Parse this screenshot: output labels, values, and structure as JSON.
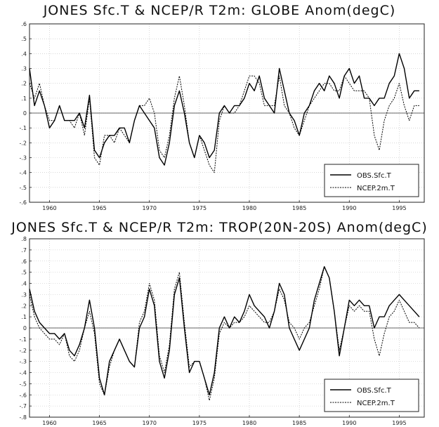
{
  "chart_data": [
    {
      "type": "line",
      "title": "JONES Sfc.T & NCEP/R T2m: GLOBE Anom(degC)",
      "xlabel": "",
      "ylabel": "",
      "xlim": [
        1958,
        1997.5
      ],
      "ylim": [
        -0.6,
        0.6
      ],
      "yticks": [
        -0.6,
        -0.5,
        -0.4,
        -0.3,
        -0.2,
        -0.1,
        0,
        0.1,
        0.2,
        0.3,
        0.4,
        0.5,
        0.6
      ],
      "xticks": [
        1960,
        1965,
        1970,
        1975,
        1980,
        1985,
        1990,
        1995
      ],
      "grid": true,
      "legend_position": "bottom-right",
      "series": [
        {
          "name": "OBS.Sfc.T",
          "style": "solid",
          "x": [
            1958.0,
            1958.5,
            1959.0,
            1959.5,
            1960.0,
            1960.5,
            1961.0,
            1961.5,
            1962.0,
            1962.5,
            1963.0,
            1963.5,
            1964.0,
            1964.5,
            1965.0,
            1965.5,
            1966.0,
            1966.5,
            1967.0,
            1967.5,
            1968.0,
            1968.5,
            1969.0,
            1969.5,
            1970.0,
            1970.5,
            1971.0,
            1971.5,
            1972.0,
            1972.5,
            1973.0,
            1973.5,
            1974.0,
            1974.5,
            1975.0,
            1975.5,
            1976.0,
            1976.5,
            1977.0,
            1977.5,
            1978.0,
            1978.5,
            1979.0,
            1979.5,
            1980.0,
            1980.5,
            1981.0,
            1981.5,
            1982.0,
            1982.5,
            1983.0,
            1983.5,
            1984.0,
            1984.5,
            1985.0,
            1985.5,
            1986.0,
            1986.5,
            1987.0,
            1987.5,
            1988.0,
            1988.5,
            1989.0,
            1989.5,
            1990.0,
            1990.5,
            1991.0,
            1991.5,
            1992.0,
            1992.5,
            1993.0,
            1993.5,
            1994.0,
            1994.5,
            1995.0,
            1995.5,
            1996.0,
            1996.5,
            1997.0
          ],
          "y": [
            0.3,
            0.05,
            0.15,
            0.05,
            -0.1,
            -0.05,
            0.05,
            -0.05,
            -0.05,
            -0.05,
            0.0,
            -0.1,
            0.12,
            -0.25,
            -0.3,
            -0.2,
            -0.15,
            -0.15,
            -0.1,
            -0.1,
            -0.2,
            -0.05,
            0.05,
            0.0,
            -0.05,
            -0.1,
            -0.3,
            -0.35,
            -0.2,
            0.05,
            0.15,
            0.0,
            -0.2,
            -0.3,
            -0.15,
            -0.2,
            -0.3,
            -0.25,
            0.0,
            0.05,
            0.0,
            0.05,
            0.05,
            0.1,
            0.2,
            0.15,
            0.25,
            0.1,
            0.05,
            0.0,
            0.3,
            0.15,
            0.0,
            -0.05,
            -0.15,
            0.0,
            0.05,
            0.15,
            0.2,
            0.15,
            0.25,
            0.2,
            0.1,
            0.25,
            0.3,
            0.2,
            0.25,
            0.1,
            0.1,
            0.05,
            0.1,
            0.1,
            0.2,
            0.25,
            0.4,
            0.3,
            0.1,
            0.15,
            0.15
          ]
        },
        {
          "name": "NCEP.2m.T",
          "style": "dashed",
          "x": [
            1958.0,
            1958.5,
            1959.0,
            1959.5,
            1960.0,
            1960.5,
            1961.0,
            1961.5,
            1962.0,
            1962.5,
            1963.0,
            1963.5,
            1964.0,
            1964.5,
            1965.0,
            1965.5,
            1966.0,
            1966.5,
            1967.0,
            1967.5,
            1968.0,
            1968.5,
            1969.0,
            1969.5,
            1970.0,
            1970.5,
            1971.0,
            1971.5,
            1972.0,
            1972.5,
            1973.0,
            1973.5,
            1974.0,
            1974.5,
            1975.0,
            1975.5,
            1976.0,
            1976.5,
            1977.0,
            1977.5,
            1978.0,
            1978.5,
            1979.0,
            1979.5,
            1980.0,
            1980.5,
            1981.0,
            1981.5,
            1982.0,
            1982.5,
            1983.0,
            1983.5,
            1984.0,
            1984.5,
            1985.0,
            1985.5,
            1986.0,
            1986.5,
            1987.0,
            1987.5,
            1988.0,
            1988.5,
            1989.0,
            1989.5,
            1990.0,
            1990.5,
            1991.0,
            1991.5,
            1992.0,
            1992.5,
            1993.0,
            1993.5,
            1994.0,
            1994.5,
            1995.0,
            1995.5,
            1996.0,
            1996.5,
            1997.0
          ],
          "y": [
            0.2,
            0.1,
            0.2,
            0.05,
            -0.05,
            -0.05,
            0.05,
            -0.05,
            -0.05,
            -0.1,
            0.0,
            -0.15,
            0.1,
            -0.3,
            -0.35,
            -0.15,
            -0.15,
            -0.2,
            -0.1,
            -0.15,
            -0.2,
            -0.05,
            0.05,
            0.05,
            0.1,
            0.0,
            -0.25,
            -0.3,
            -0.15,
            0.1,
            0.25,
            0.05,
            -0.2,
            -0.3,
            -0.15,
            -0.25,
            -0.35,
            -0.4,
            -0.05,
            0.05,
            0.0,
            0.0,
            0.05,
            0.15,
            0.25,
            0.25,
            0.2,
            0.05,
            0.05,
            0.05,
            0.25,
            0.05,
            0.0,
            -0.1,
            -0.15,
            -0.05,
            0.05,
            0.1,
            0.15,
            0.2,
            0.2,
            0.15,
            0.15,
            0.25,
            0.2,
            0.15,
            0.15,
            0.15,
            0.1,
            -0.15,
            -0.25,
            -0.05,
            0.05,
            0.1,
            0.2,
            0.05,
            -0.05,
            0.05,
            0.05
          ]
        }
      ]
    },
    {
      "type": "line",
      "title": "JONES Sfc.T & NCEP/R T2m: TROP(20N-20S) Anom(degC)",
      "xlabel": "",
      "ylabel": "",
      "xlim": [
        1958,
        1997.5
      ],
      "ylim": [
        -0.8,
        0.8
      ],
      "yticks": [
        -0.8,
        -0.7,
        -0.6,
        -0.5,
        -0.4,
        -0.3,
        -0.2,
        -0.1,
        0,
        0.1,
        0.2,
        0.3,
        0.4,
        0.5,
        0.6,
        0.7,
        0.8
      ],
      "xticks": [
        1960,
        1965,
        1970,
        1975,
        1980,
        1985,
        1990,
        1995
      ],
      "grid": true,
      "legend_position": "bottom-right",
      "series": [
        {
          "name": "OBS.Sfc.T",
          "style": "solid",
          "x": [
            1958.0,
            1958.5,
            1959.0,
            1959.5,
            1960.0,
            1960.5,
            1961.0,
            1961.5,
            1962.0,
            1962.5,
            1963.0,
            1963.5,
            1964.0,
            1964.5,
            1965.0,
            1965.5,
            1966.0,
            1966.5,
            1967.0,
            1967.5,
            1968.0,
            1968.5,
            1969.0,
            1969.5,
            1970.0,
            1970.5,
            1971.0,
            1971.5,
            1972.0,
            1972.5,
            1973.0,
            1973.5,
            1974.0,
            1974.5,
            1975.0,
            1975.5,
            1976.0,
            1976.5,
            1977.0,
            1977.5,
            1978.0,
            1978.5,
            1979.0,
            1979.5,
            1980.0,
            1980.5,
            1981.0,
            1981.5,
            1982.0,
            1982.5,
            1983.0,
            1983.5,
            1984.0,
            1984.5,
            1985.0,
            1985.5,
            1986.0,
            1986.5,
            1987.0,
            1987.5,
            1988.0,
            1988.5,
            1989.0,
            1989.5,
            1990.0,
            1990.5,
            1991.0,
            1991.5,
            1992.0,
            1992.5,
            1993.0,
            1993.5,
            1994.0,
            1994.5,
            1995.0,
            1995.5,
            1996.0,
            1996.5,
            1997.0
          ],
          "y": [
            0.35,
            0.15,
            0.05,
            0.0,
            -0.05,
            -0.05,
            -0.1,
            -0.05,
            -0.2,
            -0.25,
            -0.15,
            0.0,
            0.25,
            0.0,
            -0.45,
            -0.6,
            -0.3,
            -0.2,
            -0.1,
            -0.2,
            -0.3,
            -0.35,
            0.0,
            0.1,
            0.35,
            0.2,
            -0.3,
            -0.45,
            -0.2,
            0.3,
            0.45,
            0.0,
            -0.4,
            -0.3,
            -0.3,
            -0.45,
            -0.6,
            -0.4,
            0.0,
            0.1,
            0.0,
            0.1,
            0.05,
            0.15,
            0.3,
            0.2,
            0.15,
            0.1,
            0.0,
            0.15,
            0.4,
            0.3,
            0.0,
            -0.1,
            -0.2,
            -0.1,
            0.0,
            0.25,
            0.4,
            0.55,
            0.45,
            0.15,
            -0.25,
            0.0,
            0.25,
            0.2,
            0.25,
            0.2,
            0.2,
            0.0,
            0.1,
            0.1,
            0.2,
            0.25,
            0.3,
            0.25,
            0.2,
            0.15,
            0.1
          ]
        },
        {
          "name": "NCEP.2m.T",
          "style": "dashed",
          "x": [
            1958.0,
            1958.5,
            1959.0,
            1959.5,
            1960.0,
            1960.5,
            1961.0,
            1961.5,
            1962.0,
            1962.5,
            1963.0,
            1963.5,
            1964.0,
            1964.5,
            1965.0,
            1965.5,
            1966.0,
            1966.5,
            1967.0,
            1967.5,
            1968.0,
            1968.5,
            1969.0,
            1969.5,
            1970.0,
            1970.5,
            1971.0,
            1971.5,
            1972.0,
            1972.5,
            1973.0,
            1973.5,
            1974.0,
            1974.5,
            1975.0,
            1975.5,
            1976.0,
            1976.5,
            1977.0,
            1977.5,
            1978.0,
            1978.5,
            1979.0,
            1979.5,
            1980.0,
            1980.5,
            1981.0,
            1981.5,
            1982.0,
            1982.5,
            1983.0,
            1983.5,
            1984.0,
            1984.5,
            1985.0,
            1985.5,
            1986.0,
            1986.5,
            1987.0,
            1987.5,
            1988.0,
            1988.5,
            1989.0,
            1989.5,
            1990.0,
            1990.5,
            1991.0,
            1991.5,
            1992.0,
            1992.5,
            1993.0,
            1993.5,
            1994.0,
            1994.5,
            1995.0,
            1995.5,
            1996.0,
            1996.5,
            1997.0
          ],
          "y": [
            0.3,
            0.1,
            0.0,
            -0.05,
            -0.1,
            -0.1,
            -0.15,
            -0.05,
            -0.25,
            -0.3,
            -0.2,
            0.0,
            0.15,
            -0.05,
            -0.5,
            -0.6,
            -0.35,
            -0.2,
            -0.1,
            -0.2,
            -0.3,
            -0.35,
            0.05,
            0.15,
            0.4,
            0.25,
            -0.25,
            -0.4,
            -0.15,
            0.35,
            0.5,
            0.05,
            -0.35,
            -0.3,
            -0.3,
            -0.45,
            -0.65,
            -0.45,
            -0.05,
            0.05,
            0.0,
            0.05,
            0.05,
            0.1,
            0.2,
            0.15,
            0.1,
            0.05,
            0.05,
            0.15,
            0.35,
            0.25,
            0.05,
            0.0,
            -0.1,
            0.0,
            0.05,
            0.2,
            0.35,
            0.55,
            0.45,
            0.15,
            -0.2,
            0.0,
            0.2,
            0.15,
            0.2,
            0.15,
            0.15,
            -0.1,
            -0.25,
            -0.05,
            0.1,
            0.15,
            0.25,
            0.15,
            0.05,
            0.05,
            0.0
          ]
        }
      ]
    }
  ]
}
